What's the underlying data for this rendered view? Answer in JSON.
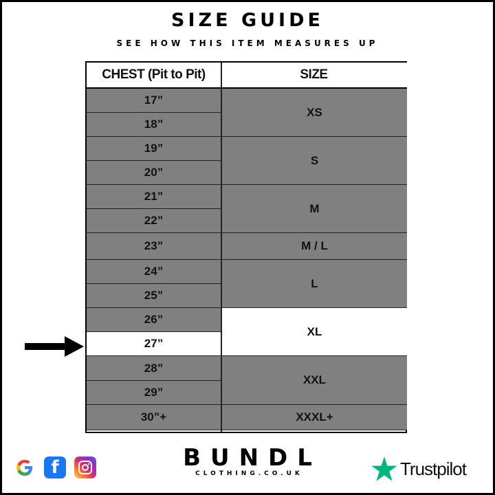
{
  "title": "SIZE GUIDE",
  "subtitle": "SEE HOW THIS ITEM MEASURES UP",
  "table": {
    "headers": [
      "CHEST (Pit to Pit)",
      "SIZE"
    ],
    "chest": [
      "17”",
      "18”",
      "19”",
      "20”",
      "21”",
      "22”",
      "23”",
      "24”",
      "25”",
      "26”",
      "27”",
      "28”",
      "29”",
      "30”+"
    ],
    "sizes": [
      {
        "label": "XS",
        "chest": [
          "17”",
          "18”"
        ]
      },
      {
        "label": "S",
        "chest": [
          "19”",
          "20”"
        ]
      },
      {
        "label": "M",
        "chest": [
          "21”",
          "22”"
        ]
      },
      {
        "label": "M / L",
        "chest": [
          "23”"
        ]
      },
      {
        "label": "L",
        "chest": [
          "24”",
          "25”"
        ]
      },
      {
        "label": "XL",
        "chest": [
          "26”",
          "27”"
        ]
      },
      {
        "label": "XXL",
        "chest": [
          "28”",
          "29”"
        ]
      },
      {
        "label": "XXXL+",
        "chest": [
          "30”+"
        ]
      }
    ],
    "highlighted_chest": "27”",
    "highlighted_size": "XL"
  },
  "colors": {
    "row": "#808080",
    "highlight": "#ffffff"
  },
  "footer": {
    "icons": [
      "google-icon",
      "facebook-icon",
      "instagram-icon"
    ],
    "brand": "BUNDL",
    "brand_sub": "CLOTHING.CO.UK",
    "trustpilot": "Trustpilot"
  }
}
